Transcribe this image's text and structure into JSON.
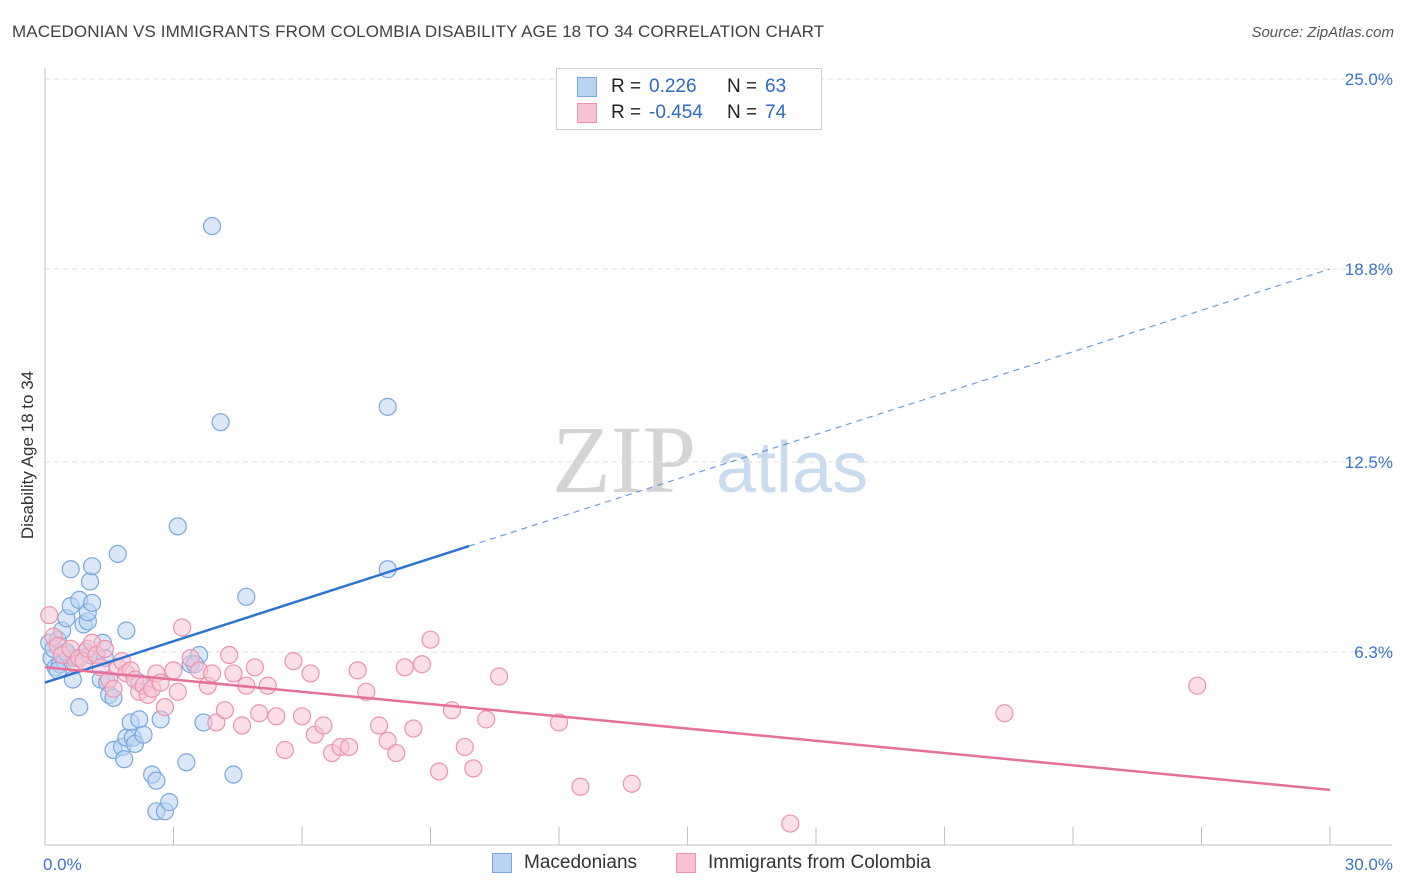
{
  "title": "MACEDONIAN VS IMMIGRANTS FROM COLOMBIA DISABILITY AGE 18 TO 34 CORRELATION CHART",
  "source": "Source: ZipAtlas.com",
  "watermark": {
    "zip": "ZIP",
    "atlas": "atlas"
  },
  "colors": {
    "blue_fill": "#b9d3f2",
    "blue_stroke": "#7aa7dd",
    "blue_line": "#2f74d0",
    "pink_fill": "#f7c3d3",
    "pink_stroke": "#ec93b0",
    "pink_line": "#e4719b",
    "tick_text": "#3b73c4",
    "grid": "#e2e2e2"
  },
  "legend": {
    "rows": [
      {
        "r_label": "R =",
        "r_value": "0.226",
        "n_label": "N =",
        "n_value": "63"
      },
      {
        "r_label": "R =",
        "r_value": "-0.454",
        "n_label": "N =",
        "n_value": "74"
      }
    ]
  },
  "bottom_legend": [
    "Macedonians",
    "Immigrants from Colombia"
  ],
  "chart_data": {
    "type": "scatter",
    "title": "MACEDONIAN VS IMMIGRANTS FROM COLOMBIA DISABILITY AGE 18 TO 34 CORRELATION CHART",
    "xlabel": "",
    "ylabel": "Disability Age 18 to 34",
    "xlim": [
      0,
      30
    ],
    "ylim": [
      0,
      25
    ],
    "x_tick_labels": [
      "0.0%",
      "30.0%"
    ],
    "y_ticks": [
      6.3,
      12.5,
      18.8,
      25.0
    ],
    "y_tick_labels": [
      "6.3%",
      "12.5%",
      "18.8%",
      "25.0%"
    ],
    "grid": true,
    "legend_placement": "top-center",
    "series": [
      {
        "name": "Macedonians",
        "r": 0.226,
        "n": 63,
        "trend": {
          "x0": 0.0,
          "y0": 5.3,
          "x1": 30.0,
          "y1": 18.8,
          "solid_until_x": 9.9
        },
        "points": [
          [
            0.1,
            6.6
          ],
          [
            0.15,
            6.1
          ],
          [
            0.2,
            6.4
          ],
          [
            0.25,
            5.8
          ],
          [
            0.3,
            6.7
          ],
          [
            0.35,
            5.9
          ],
          [
            0.4,
            7.0
          ],
          [
            0.45,
            6.0
          ],
          [
            0.5,
            7.4
          ],
          [
            0.55,
            6.2
          ],
          [
            0.6,
            7.8
          ],
          [
            0.65,
            5.4
          ],
          [
            0.6,
            9.0
          ],
          [
            0.8,
            8.0
          ],
          [
            0.7,
            6.1
          ],
          [
            0.9,
            7.2
          ],
          [
            1.0,
            7.3
          ],
          [
            0.95,
            6.3
          ],
          [
            1.0,
            7.6
          ],
          [
            1.05,
            6.2
          ],
          [
            1.1,
            7.9
          ],
          [
            1.05,
            8.6
          ],
          [
            1.1,
            9.1
          ],
          [
            1.2,
            6.2
          ],
          [
            1.3,
            5.4
          ],
          [
            1.35,
            6.6
          ],
          [
            1.4,
            6.1
          ],
          [
            1.45,
            5.3
          ],
          [
            1.5,
            4.9
          ],
          [
            1.6,
            4.8
          ],
          [
            0.8,
            4.5
          ],
          [
            1.6,
            3.1
          ],
          [
            1.7,
            9.5
          ],
          [
            1.8,
            3.2
          ],
          [
            1.85,
            2.8
          ],
          [
            1.9,
            3.5
          ],
          [
            1.9,
            7.0
          ],
          [
            2.0,
            4.0
          ],
          [
            2.05,
            3.5
          ],
          [
            2.1,
            3.3
          ],
          [
            2.2,
            4.1
          ],
          [
            2.3,
            3.6
          ],
          [
            2.5,
            2.3
          ],
          [
            2.6,
            2.1
          ],
          [
            2.6,
            1.1
          ],
          [
            2.7,
            4.1
          ],
          [
            2.8,
            1.1
          ],
          [
            2.9,
            1.4
          ],
          [
            3.1,
            10.4
          ],
          [
            3.3,
            2.7
          ],
          [
            3.4,
            5.9
          ],
          [
            3.6,
            6.2
          ],
          [
            3.7,
            4.0
          ],
          [
            3.9,
            20.2
          ],
          [
            4.1,
            13.8
          ],
          [
            4.4,
            2.3
          ],
          [
            4.7,
            8.1
          ],
          [
            8.0,
            14.3
          ],
          [
            8.0,
            9.0
          ],
          [
            3.5,
            5.9
          ],
          [
            2.2,
            5.3
          ],
          [
            0.5,
            6.3
          ],
          [
            0.3,
            5.7
          ]
        ]
      },
      {
        "name": "Immigrants from Colombia",
        "r": -0.454,
        "n": 74,
        "trend": {
          "x0": 0.0,
          "y0": 5.8,
          "x1": 30.0,
          "y1": 1.8
        },
        "points": [
          [
            0.1,
            7.5
          ],
          [
            0.2,
            6.8
          ],
          [
            0.3,
            6.5
          ],
          [
            0.4,
            6.2
          ],
          [
            0.6,
            6.4
          ],
          [
            0.7,
            5.9
          ],
          [
            0.8,
            6.1
          ],
          [
            0.9,
            6.0
          ],
          [
            1.0,
            6.4
          ],
          [
            1.1,
            6.6
          ],
          [
            1.2,
            6.2
          ],
          [
            1.3,
            5.8
          ],
          [
            1.4,
            6.4
          ],
          [
            1.5,
            5.4
          ],
          [
            1.6,
            5.1
          ],
          [
            1.7,
            5.8
          ],
          [
            1.8,
            6.0
          ],
          [
            1.9,
            5.6
          ],
          [
            2.0,
            5.7
          ],
          [
            2.1,
            5.4
          ],
          [
            2.2,
            5.0
          ],
          [
            2.3,
            5.2
          ],
          [
            2.4,
            4.9
          ],
          [
            2.5,
            5.1
          ],
          [
            2.6,
            5.6
          ],
          [
            2.7,
            5.3
          ],
          [
            2.8,
            4.5
          ],
          [
            3.0,
            5.7
          ],
          [
            3.1,
            5.0
          ],
          [
            3.2,
            7.1
          ],
          [
            3.4,
            6.1
          ],
          [
            3.6,
            5.7
          ],
          [
            3.8,
            5.2
          ],
          [
            3.9,
            5.6
          ],
          [
            4.0,
            4.0
          ],
          [
            4.2,
            4.4
          ],
          [
            4.3,
            6.2
          ],
          [
            4.4,
            5.6
          ],
          [
            4.6,
            3.9
          ],
          [
            4.7,
            5.2
          ],
          [
            4.9,
            5.8
          ],
          [
            5.0,
            4.3
          ],
          [
            5.2,
            5.2
          ],
          [
            5.4,
            4.2
          ],
          [
            5.6,
            3.1
          ],
          [
            5.8,
            6.0
          ],
          [
            6.0,
            4.2
          ],
          [
            6.2,
            5.6
          ],
          [
            6.3,
            3.6
          ],
          [
            6.5,
            3.9
          ],
          [
            6.7,
            3.0
          ],
          [
            6.9,
            3.2
          ],
          [
            7.1,
            3.2
          ],
          [
            7.3,
            5.7
          ],
          [
            7.5,
            5.0
          ],
          [
            7.8,
            3.9
          ],
          [
            8.0,
            3.4
          ],
          [
            8.2,
            3.0
          ],
          [
            8.4,
            5.8
          ],
          [
            8.6,
            3.8
          ],
          [
            8.8,
            5.9
          ],
          [
            9.0,
            6.7
          ],
          [
            9.2,
            2.4
          ],
          [
            9.5,
            4.4
          ],
          [
            9.8,
            3.2
          ],
          [
            10.0,
            2.5
          ],
          [
            10.3,
            4.1
          ],
          [
            10.6,
            5.5
          ],
          [
            12.0,
            4.0
          ],
          [
            12.5,
            1.9
          ],
          [
            13.7,
            2.0
          ],
          [
            17.4,
            0.7
          ],
          [
            22.4,
            4.3
          ],
          [
            26.9,
            5.2
          ]
        ]
      }
    ]
  }
}
